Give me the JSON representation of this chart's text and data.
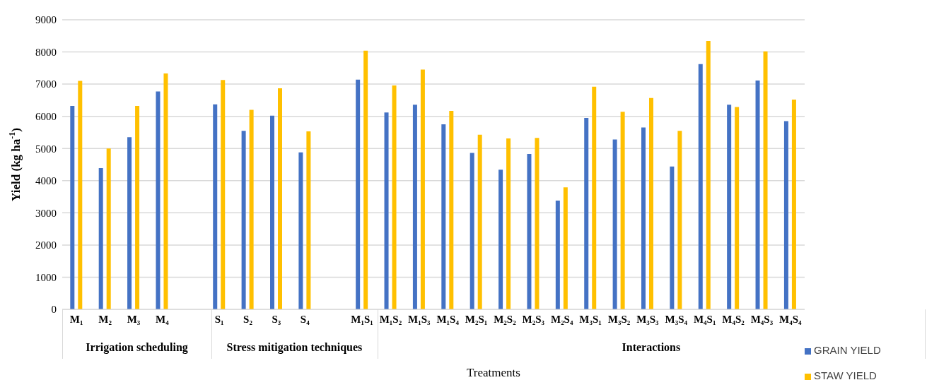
{
  "chart_data": {
    "type": "bar",
    "xlabel": "Treatments",
    "ylabel": "Yield (kg ha$^{-1}$)",
    "categories": [
      "M₁",
      "M₂",
      "M₃",
      "M₄",
      null,
      "S₁",
      "S₂",
      "S₃",
      "S₄",
      null,
      "M₁S₁",
      "M₁S₂",
      "M₁S₃",
      "M₁S₄",
      "M₂S₁",
      "M₂S₂",
      "M₂S₃",
      "M₂S₄",
      "M₃S₁",
      "M₃S₂",
      "M₃S₃",
      "M₃S₄",
      "M₄S₁",
      "M₄S₂",
      "M₄S₃",
      "M₄S₄"
    ],
    "series": [
      {
        "name": "GRAIN YIELD",
        "color": "#4472c4",
        "values": [
          6320,
          4390,
          5350,
          6770,
          null,
          6370,
          5550,
          6020,
          4880,
          null,
          7140,
          6120,
          6360,
          5750,
          4860,
          4340,
          4830,
          3380,
          5950,
          5280,
          5650,
          4440,
          7620,
          6360,
          7110,
          5850
        ]
      },
      {
        "name": "STAW YIELD",
        "color": "#ffc000",
        "values": [
          7100,
          5000,
          6320,
          7330,
          null,
          7130,
          6200,
          6870,
          5530,
          null,
          8040,
          6960,
          7450,
          6170,
          5430,
          5310,
          5330,
          3790,
          6920,
          6140,
          6570,
          5550,
          8340,
          6290,
          8020,
          6520
        ]
      }
    ],
    "ylim": [
      0,
      9000
    ],
    "yticks": [
      0,
      1000,
      2000,
      3000,
      4000,
      5000,
      6000,
      7000,
      8000,
      9000
    ],
    "grid": "y",
    "legend": "bottom right",
    "annotations": [
      "Irrigation scheduling",
      "Stress mitigation techniques",
      "Interactions"
    ]
  }
}
